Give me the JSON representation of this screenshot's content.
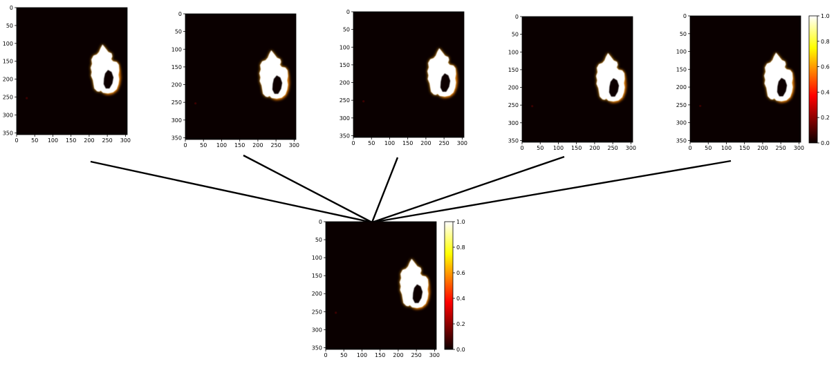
{
  "chart_data": [
    {
      "type": "heatmap",
      "role": "input",
      "xlim": [
        0,
        305
      ],
      "ylim": [
        355,
        0
      ],
      "xticks": [
        0,
        50,
        100,
        150,
        200,
        250,
        300
      ],
      "yticks": [
        0,
        50,
        100,
        150,
        200,
        250,
        300,
        350
      ],
      "colorbar": null
    },
    {
      "type": "heatmap",
      "role": "input",
      "xlim": [
        0,
        305
      ],
      "ylim": [
        355,
        0
      ],
      "xticks": [
        0,
        50,
        100,
        150,
        200,
        250,
        300
      ],
      "yticks": [
        0,
        50,
        100,
        150,
        200,
        250,
        300,
        350
      ],
      "colorbar": null
    },
    {
      "type": "heatmap",
      "role": "input",
      "xlim": [
        0,
        305
      ],
      "ylim": [
        355,
        0
      ],
      "xticks": [
        0,
        50,
        100,
        150,
        200,
        250,
        300
      ],
      "yticks": [
        0,
        50,
        100,
        150,
        200,
        250,
        300,
        350
      ],
      "colorbar": null
    },
    {
      "type": "heatmap",
      "role": "input",
      "xlim": [
        0,
        305
      ],
      "ylim": [
        355,
        0
      ],
      "xticks": [
        0,
        50,
        100,
        150,
        200,
        250,
        300
      ],
      "yticks": [
        0,
        50,
        100,
        150,
        200,
        250,
        300,
        350
      ],
      "colorbar": null
    },
    {
      "type": "heatmap",
      "role": "input",
      "xlim": [
        0,
        305
      ],
      "ylim": [
        355,
        0
      ],
      "xticks": [
        0,
        50,
        100,
        150,
        200,
        250,
        300
      ],
      "yticks": [
        0,
        50,
        100,
        150,
        200,
        250,
        300,
        350
      ],
      "colorbar": {
        "range": [
          0,
          1
        ],
        "ticks": [
          "0.0",
          "0.2",
          "0.4",
          "0.6",
          "0.8",
          "1.0"
        ],
        "colormap": "hot"
      }
    },
    {
      "type": "heatmap",
      "role": "output",
      "xlim": [
        0,
        305
      ],
      "ylim": [
        355,
        0
      ],
      "xticks": [
        0,
        50,
        100,
        150,
        200,
        250,
        300
      ],
      "yticks": [
        0,
        50,
        100,
        150,
        200,
        250,
        300,
        350
      ],
      "colorbar": {
        "range": [
          0,
          1
        ],
        "ticks": [
          "0.0",
          "0.2",
          "0.4",
          "0.6",
          "0.8",
          "1.0"
        ],
        "colormap": "hot"
      }
    }
  ],
  "colors": {
    "background": "#0a0000",
    "blob": "#ffffff",
    "edge": "#ffb020",
    "ring": "#ff7a00",
    "dot": "#3a0000",
    "connector": "#000000"
  }
}
